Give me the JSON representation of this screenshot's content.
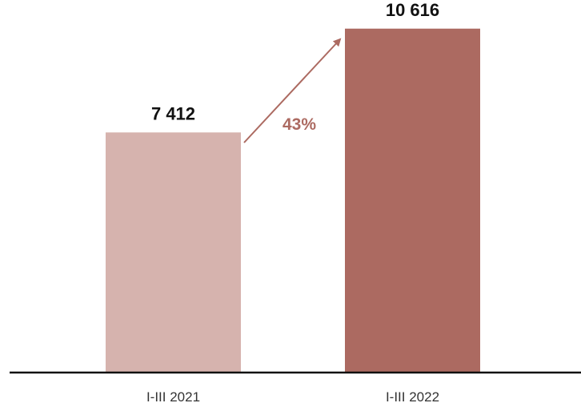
{
  "chart_data": {
    "type": "bar",
    "categories": [
      "I-III 2021",
      "I-III 2022"
    ],
    "values": [
      7412,
      10616
    ],
    "value_labels": [
      "7 412",
      "10 616"
    ],
    "change_label": "43%",
    "ylim": [
      0,
      11500
    ],
    "grid": false,
    "legend": "none",
    "colors": {
      "bars": [
        "#d6b3ae",
        "#ac6a61"
      ],
      "arrow": "#ac6a61",
      "change_label": "#ac6a61",
      "axis": "#111111"
    }
  }
}
